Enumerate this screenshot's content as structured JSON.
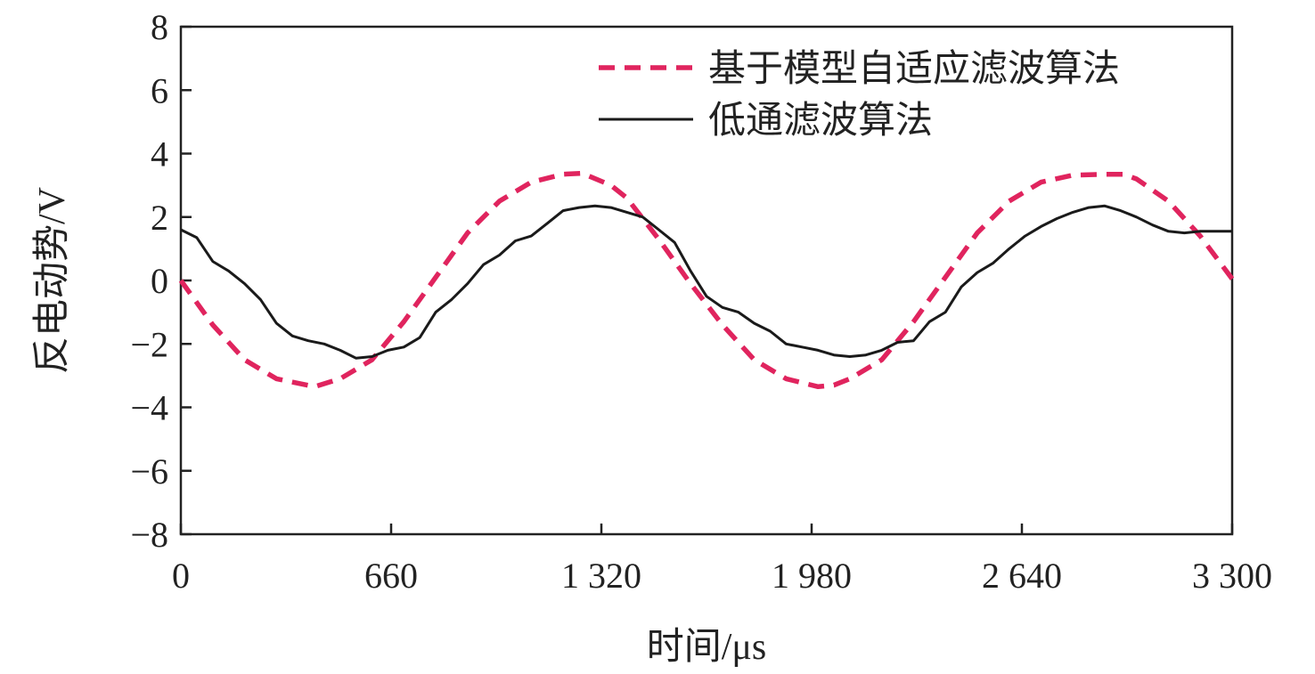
{
  "chart_data": {
    "type": "line",
    "xlabel": "时间/μs",
    "ylabel": "反电动势/V",
    "xlim": [
      0,
      3300
    ],
    "ylim": [
      -8,
      8
    ],
    "x_ticks": [
      0,
      660,
      1320,
      1980,
      2640,
      3300
    ],
    "x_tick_labels": [
      "0",
      "660",
      "1 320",
      "1 980",
      "2 640",
      "3 300"
    ],
    "y_ticks": [
      -8,
      -6,
      -4,
      -2,
      0,
      2,
      4,
      6,
      8
    ],
    "y_tick_labels": [
      "−8",
      "−6",
      "−4",
      "−2",
      "0",
      "2",
      "4",
      "6",
      "8"
    ],
    "grid": false,
    "legend_position": "top-right",
    "series": [
      {
        "name": "基于模型自适应滤波算法",
        "color": "#e0245e",
        "style": "dashed",
        "x": [
          0,
          100,
          200,
          300,
          420,
          500,
          600,
          700,
          800,
          900,
          1000,
          1100,
          1200,
          1260,
          1350,
          1400,
          1500,
          1600,
          1700,
          1800,
          1900,
          2000,
          2050,
          2100,
          2200,
          2300,
          2400,
          2500,
          2600,
          2700,
          2800,
          2900,
          2960,
          3000,
          3100,
          3200,
          3300
        ],
        "y": [
          0,
          -1.4,
          -2.5,
          -3.1,
          -3.35,
          -3.1,
          -2.5,
          -1.3,
          0.1,
          1.5,
          2.5,
          3.1,
          3.35,
          3.38,
          3.0,
          2.6,
          1.3,
          -0.1,
          -1.4,
          -2.5,
          -3.1,
          -3.35,
          -3.3,
          -3.1,
          -2.5,
          -1.3,
          0.1,
          1.5,
          2.5,
          3.1,
          3.32,
          3.35,
          3.35,
          3.2,
          2.5,
          1.4,
          0.05
        ]
      },
      {
        "name": "低通滤波算法",
        "color": "#1a1a1a",
        "style": "solid",
        "x": [
          0,
          50,
          100,
          150,
          200,
          250,
          300,
          350,
          400,
          450,
          500,
          550,
          600,
          650,
          700,
          750,
          800,
          850,
          900,
          950,
          1000,
          1050,
          1100,
          1150,
          1200,
          1250,
          1300,
          1350,
          1400,
          1450,
          1500,
          1550,
          1600,
          1650,
          1700,
          1750,
          1800,
          1850,
          1900,
          1950,
          2000,
          2050,
          2100,
          2150,
          2200,
          2250,
          2300,
          2350,
          2400,
          2450,
          2500,
          2550,
          2600,
          2650,
          2700,
          2750,
          2800,
          2850,
          2900,
          2950,
          3000,
          3050,
          3100,
          3150,
          3200,
          3250,
          3300
        ],
        "y": [
          1.6,
          1.35,
          0.6,
          0.3,
          -0.1,
          -0.6,
          -1.35,
          -1.75,
          -1.9,
          -2.0,
          -2.2,
          -2.45,
          -2.4,
          -2.2,
          -2.1,
          -1.8,
          -1.0,
          -0.6,
          -0.1,
          0.5,
          0.8,
          1.25,
          1.4,
          1.8,
          2.2,
          2.3,
          2.35,
          2.3,
          2.15,
          2.0,
          1.6,
          1.2,
          0.3,
          -0.5,
          -0.85,
          -1.0,
          -1.35,
          -1.6,
          -2.0,
          -2.1,
          -2.2,
          -2.35,
          -2.4,
          -2.35,
          -2.2,
          -1.95,
          -1.9,
          -1.3,
          -1.0,
          -0.2,
          0.25,
          0.55,
          1.0,
          1.4,
          1.7,
          1.95,
          2.15,
          2.3,
          2.35,
          2.2,
          2.0,
          1.75,
          1.55,
          1.5,
          1.55,
          1.55,
          1.55
        ]
      }
    ]
  }
}
